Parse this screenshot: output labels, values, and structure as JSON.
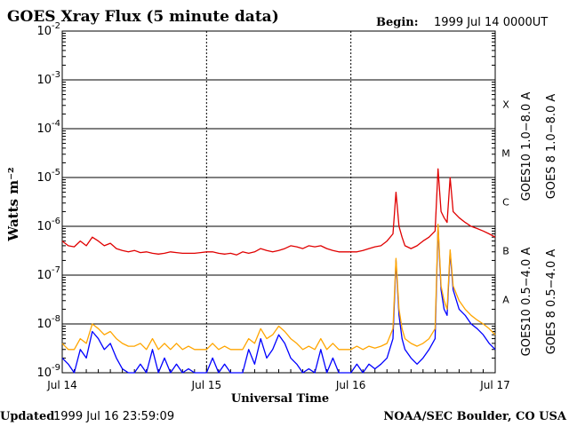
{
  "header": {
    "title": "GOES Xray Flux (5 minute data)",
    "begin_label": "Begin:",
    "begin_value": "1999 Jul 14 0000UT"
  },
  "footer": {
    "updated_label": "Updated",
    "updated_value": "1999 Jul 16 23:59:09",
    "credit": "NOAA/SEC Boulder, CO USA"
  },
  "colors": {
    "goes10_long": "#8a2be2",
    "goes8_long": "#e00000",
    "goes10_short": "#ffa500",
    "goes8_short": "#0000ff",
    "grid": "#000000"
  },
  "chart_data": {
    "type": "line",
    "title": "GOES Xray Flux (5 minute data)",
    "xlabel": "Universal Time",
    "ylabel": "Watts m⁻²",
    "yscale": "log",
    "xlim": [
      0,
      72
    ],
    "xlim_note": "",
    "ylim": [
      1e-09,
      0.01
    ],
    "x_ticks": [
      {
        "x": 0,
        "label": "Jul 14"
      },
      {
        "x": 24,
        "label": "Jul 15"
      },
      {
        "x": 48,
        "label": "Jul 16"
      },
      {
        "x": 72,
        "label": "Jul 17"
      }
    ],
    "y_ticks": [
      {
        "exp": -9,
        "label": "10",
        "sup": "-9"
      },
      {
        "exp": -8,
        "label": "10",
        "sup": "-8"
      },
      {
        "exp": -7,
        "label": "10",
        "sup": "-7"
      },
      {
        "exp": -6,
        "label": "10",
        "sup": "-6"
      },
      {
        "exp": -5,
        "label": "10",
        "sup": "-5"
      },
      {
        "exp": -4,
        "label": "10",
        "sup": "-4"
      },
      {
        "exp": -3,
        "label": "10",
        "sup": "-3"
      },
      {
        "exp": -2,
        "label": "10",
        "sup": "-2"
      }
    ],
    "flare_classes": [
      {
        "label": "X",
        "exp": -3.5
      },
      {
        "label": "M",
        "exp": -4.5
      },
      {
        "label": "C",
        "exp": -5.5
      },
      {
        "label": "B",
        "exp": -6.5
      },
      {
        "label": "A",
        "exp": -7.5
      }
    ],
    "legend": [
      {
        "label": "GOES10 1.0−8.0 A",
        "color": "#8a2be2"
      },
      {
        "label": "GOES 8 1.0−8.0 A",
        "color": "#e00000"
      },
      {
        "label": "GOES10 0.5−4.0 A",
        "color": "#ffa500"
      },
      {
        "label": "GOES 8 0.5−4.0 A",
        "color": "#0000ff"
      }
    ],
    "series": [
      {
        "name": "GOES 8 1.0−8.0 A",
        "color": "#e00000",
        "x": [
          0,
          1,
          2,
          3,
          4,
          5,
          6,
          7,
          8,
          9,
          10,
          11,
          12,
          13,
          14,
          15,
          16,
          17,
          18,
          19,
          20,
          21,
          22,
          23,
          24,
          25,
          26,
          27,
          28,
          29,
          30,
          31,
          32,
          33,
          34,
          35,
          36,
          37,
          38,
          39,
          40,
          41,
          42,
          43,
          44,
          45,
          46,
          47,
          48,
          49,
          50,
          51,
          52,
          53,
          54,
          55,
          55.5,
          56,
          56.5,
          57,
          58,
          59,
          60,
          61,
          62,
          62.5,
          63,
          63.5,
          64,
          64.5,
          65,
          66,
          67,
          68,
          69,
          70,
          71,
          72
        ],
        "y": [
          5e-07,
          4e-07,
          3.8e-07,
          5e-07,
          4e-07,
          6e-07,
          5e-07,
          4e-07,
          4.5e-07,
          3.5e-07,
          3.2e-07,
          3e-07,
          3.2e-07,
          2.9e-07,
          3e-07,
          2.8e-07,
          2.7e-07,
          2.8e-07,
          3e-07,
          2.9e-07,
          2.8e-07,
          2.8e-07,
          2.8e-07,
          2.9e-07,
          3e-07,
          3e-07,
          2.8e-07,
          2.7e-07,
          2.8e-07,
          2.6e-07,
          3e-07,
          2.8e-07,
          3e-07,
          3.5e-07,
          3.2e-07,
          3e-07,
          3.2e-07,
          3.5e-07,
          4e-07,
          3.8e-07,
          3.5e-07,
          4e-07,
          3.8e-07,
          4e-07,
          3.5e-07,
          3.2e-07,
          3e-07,
          3e-07,
          3e-07,
          3e-07,
          3.2e-07,
          3.5e-07,
          3.8e-07,
          4e-07,
          5e-07,
          7e-07,
          5e-06,
          1e-06,
          6e-07,
          4e-07,
          3.5e-07,
          4e-07,
          5e-07,
          6e-07,
          8e-07,
          1.5e-05,
          2e-06,
          1.5e-06,
          1.2e-06,
          1e-05,
          2e-06,
          1.5e-06,
          1.2e-06,
          1e-06,
          9e-07,
          8e-07,
          7e-07,
          6e-07
        ]
      },
      {
        "name": "GOES 8 0.5−4.0 A",
        "color": "#0000ff",
        "x": [
          0,
          1,
          2,
          3,
          4,
          5,
          6,
          7,
          8,
          9,
          10,
          11,
          12,
          13,
          14,
          15,
          16,
          17,
          18,
          19,
          20,
          21,
          22,
          23,
          24,
          25,
          26,
          27,
          28,
          29,
          30,
          31,
          32,
          33,
          34,
          35,
          36,
          37,
          38,
          39,
          40,
          41,
          42,
          43,
          44,
          45,
          46,
          47,
          48,
          49,
          50,
          51,
          52,
          53,
          54,
          55,
          55.5,
          56,
          56.5,
          57,
          58,
          59,
          60,
          61,
          62,
          62.5,
          63,
          63.5,
          64,
          64.5,
          65,
          66,
          67,
          68,
          69,
          70,
          71,
          72
        ],
        "y": [
          2e-09,
          1.5e-09,
          1e-09,
          3e-09,
          2e-09,
          7e-09,
          5e-09,
          3e-09,
          4e-09,
          2e-09,
          1.2e-09,
          1e-09,
          1e-09,
          1.5e-09,
          1e-09,
          3e-09,
          1e-09,
          2e-09,
          1e-09,
          1.5e-09,
          1e-09,
          1.2e-09,
          1e-09,
          1e-09,
          1e-09,
          2e-09,
          1e-09,
          1.5e-09,
          1e-09,
          1e-09,
          1e-09,
          3e-09,
          1.5e-09,
          5e-09,
          2e-09,
          3e-09,
          6e-09,
          4e-09,
          2e-09,
          1.5e-09,
          1e-09,
          1.2e-09,
          1e-09,
          3e-09,
          1e-09,
          2e-09,
          1e-09,
          1e-09,
          1e-09,
          1.5e-09,
          1e-09,
          1.5e-09,
          1.2e-09,
          1.5e-09,
          2e-09,
          5e-09,
          2e-07,
          1.5e-08,
          5e-09,
          3e-09,
          2e-09,
          1.5e-09,
          2e-09,
          3e-09,
          5e-09,
          1e-06,
          5e-08,
          2e-08,
          1.5e-08,
          3e-07,
          5e-08,
          2e-08,
          1.5e-08,
          1e-08,
          8e-09,
          6e-09,
          4e-09,
          3e-09
        ]
      },
      {
        "name": "GOES10 0.5−4.0 A",
        "color": "#ffa500",
        "x": [
          0,
          1,
          2,
          3,
          4,
          5,
          6,
          7,
          8,
          9,
          10,
          11,
          12,
          13,
          14,
          15,
          16,
          17,
          18,
          19,
          20,
          21,
          22,
          23,
          24,
          25,
          26,
          27,
          28,
          29,
          30,
          31,
          32,
          33,
          34,
          35,
          36,
          37,
          38,
          39,
          40,
          41,
          42,
          43,
          44,
          45,
          46,
          47,
          48,
          49,
          50,
          51,
          52,
          53,
          54,
          55,
          55.5,
          56,
          56.5,
          57,
          58,
          59,
          60,
          61,
          62,
          62.5,
          63,
          63.5,
          64,
          64.5,
          65,
          66,
          67,
          68,
          69,
          70,
          71,
          72
        ],
        "y": [
          4e-09,
          3e-09,
          3e-09,
          5e-09,
          4e-09,
          1e-08,
          8e-09,
          6e-09,
          7e-09,
          5e-09,
          4e-09,
          3.5e-09,
          3.5e-09,
          4e-09,
          3e-09,
          5e-09,
          3e-09,
          4e-09,
          3e-09,
          4e-09,
          3e-09,
          3.5e-09,
          3e-09,
          3e-09,
          3e-09,
          4e-09,
          3e-09,
          3.5e-09,
          3e-09,
          3e-09,
          3e-09,
          5e-09,
          4e-09,
          8e-09,
          5e-09,
          6e-09,
          9e-09,
          7e-09,
          5e-09,
          4e-09,
          3e-09,
          3.5e-09,
          3e-09,
          5e-09,
          3e-09,
          4e-09,
          3e-09,
          3e-09,
          3e-09,
          3.5e-09,
          3e-09,
          3.5e-09,
          3.2e-09,
          3.5e-09,
          4e-09,
          8e-09,
          2.2e-07,
          2e-08,
          8e-09,
          5e-09,
          4e-09,
          3.5e-09,
          4e-09,
          5e-09,
          8e-09,
          1.1e-06,
          6e-08,
          3e-08,
          2e-08,
          3.3e-07,
          6e-08,
          3e-08,
          2e-08,
          1.5e-08,
          1.2e-08,
          1e-08,
          8e-09,
          6e-09
        ]
      }
    ],
    "grid": true
  }
}
